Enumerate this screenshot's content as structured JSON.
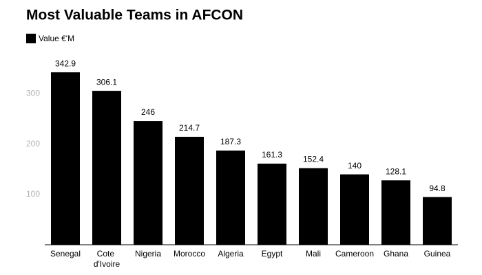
{
  "chart_data": {
    "type": "bar",
    "title": "Most Valuable Teams in AFCON",
    "categories": [
      "Senegal",
      "Cote d'Ivoire",
      "Nigeria",
      "Morocco",
      "Algeria",
      "Egypt",
      "Mali",
      "Cameroon",
      "Ghana",
      "Guinea"
    ],
    "series": [
      {
        "name": "Value €'M",
        "color": "#000000",
        "values": [
          342.9,
          306.1,
          246,
          214.7,
          187.3,
          161.3,
          152.4,
          140,
          128.1,
          94.8
        ]
      }
    ],
    "ylim": [
      0,
      350
    ],
    "yticks": [
      100,
      200,
      300
    ],
    "grid": false
  }
}
